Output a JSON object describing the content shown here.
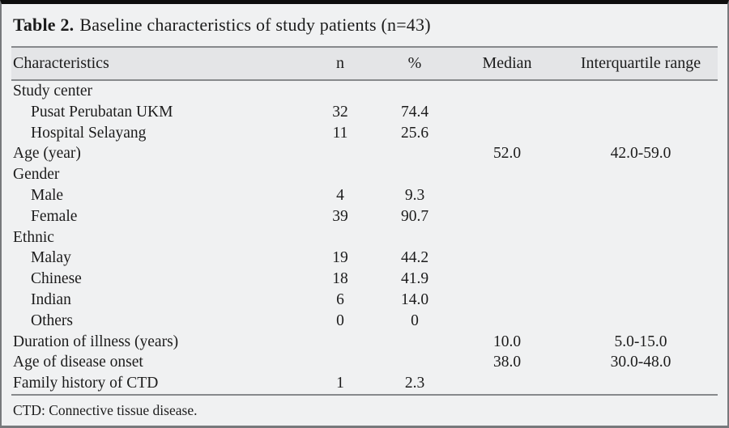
{
  "table": {
    "title_prefix": "Table 2.",
    "title_text": "Baseline characteristics of study patients (n=43)",
    "columns": [
      "Characteristics",
      "n",
      "%",
      "Median",
      "Interquartile range"
    ],
    "rows": [
      {
        "label": "Study center",
        "indent": false,
        "n": "",
        "pct": "",
        "median": "",
        "iqr": ""
      },
      {
        "label": "Pusat Perubatan UKM",
        "indent": true,
        "n": "32",
        "pct": "74.4",
        "median": "",
        "iqr": ""
      },
      {
        "label": "Hospital Selayang",
        "indent": true,
        "n": "11",
        "pct": "25.6",
        "median": "",
        "iqr": ""
      },
      {
        "label": "Age (year)",
        "indent": false,
        "n": "",
        "pct": "",
        "median": "52.0",
        "iqr": "42.0-59.0"
      },
      {
        "label": "Gender",
        "indent": false,
        "n": "",
        "pct": "",
        "median": "",
        "iqr": ""
      },
      {
        "label": "Male",
        "indent": true,
        "n": "4",
        "pct": "9.3",
        "median": "",
        "iqr": ""
      },
      {
        "label": "Female",
        "indent": true,
        "n": "39",
        "pct": "90.7",
        "median": "",
        "iqr": ""
      },
      {
        "label": "Ethnic",
        "indent": false,
        "n": "",
        "pct": "",
        "median": "",
        "iqr": ""
      },
      {
        "label": "Malay",
        "indent": true,
        "n": "19",
        "pct": "44.2",
        "median": "",
        "iqr": ""
      },
      {
        "label": "Chinese",
        "indent": true,
        "n": "18",
        "pct": "41.9",
        "median": "",
        "iqr": ""
      },
      {
        "label": "Indian",
        "indent": true,
        "n": "6",
        "pct": "14.0",
        "median": "",
        "iqr": ""
      },
      {
        "label": "Others",
        "indent": true,
        "n": "0",
        "pct": "0",
        "median": "",
        "iqr": ""
      },
      {
        "label": "Duration of illness (years)",
        "indent": false,
        "n": "",
        "pct": "",
        "median": "10.0",
        "iqr": "5.0-15.0"
      },
      {
        "label": "Age of disease onset",
        "indent": false,
        "n": "",
        "pct": "",
        "median": "38.0",
        "iqr": "30.0-48.0"
      },
      {
        "label": "Family history of CTD",
        "indent": false,
        "n": "1",
        "pct": "2.3",
        "median": "",
        "iqr": ""
      }
    ],
    "footnote": "CTD: Connective tissue disease."
  },
  "colors": {
    "page_background": "#f0f1f2",
    "header_band": "#e4e5e7",
    "rule": "#87898c",
    "outer_border": "#77797c",
    "top_bar": "#0d0d0d",
    "text": "#1c1c1c"
  }
}
